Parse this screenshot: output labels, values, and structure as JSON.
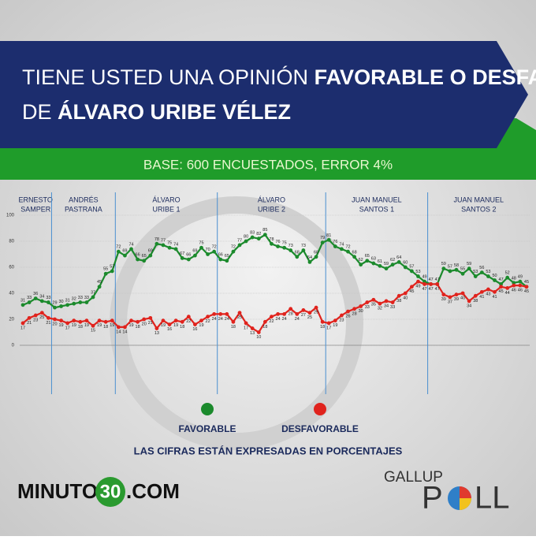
{
  "header": {
    "title_lines": [
      [
        {
          "text": "TIENE USTED UNA OPINIÓN ",
          "bold": false
        },
        {
          "text": "FAVORABLE O DESFAVORABLE",
          "bold": true
        }
      ],
      [
        {
          "text": "DE ",
          "bold": false
        },
        {
          "text": "ÁLVARO URIBE VÉLEZ",
          "bold": true
        }
      ]
    ],
    "subtitle": "BASE: 600 ENCUESTADOS, ERROR 4%"
  },
  "chart_data": {
    "type": "line",
    "categories": [
      null,
      null,
      null,
      null,
      null,
      null,
      null,
      null,
      null,
      null,
      null,
      null,
      null,
      null,
      null,
      null,
      null,
      null,
      null,
      null,
      null,
      null,
      null,
      null,
      null,
      null,
      null,
      null,
      null,
      null,
      null,
      null,
      null,
      null,
      null,
      null,
      null,
      null,
      null,
      null,
      null,
      null,
      null,
      null,
      null,
      null,
      null,
      null,
      null,
      null,
      null,
      null,
      null,
      null,
      null,
      null,
      null,
      null,
      null,
      null,
      null,
      null,
      null,
      null,
      null,
      null,
      null,
      null,
      null,
      null,
      null,
      null,
      null,
      null,
      null,
      null,
      null,
      null,
      null,
      null
    ],
    "series": [
      {
        "name": "FAVORABLE",
        "color": "#1b8a2c",
        "values": [
          31,
          33,
          36,
          34,
          33,
          29,
          30,
          31,
          32,
          33,
          33,
          37,
          45,
          55,
          57,
          72,
          69,
          74,
          66,
          65,
          69,
          78,
          77,
          75,
          74,
          67,
          66,
          69,
          75,
          70,
          72,
          66,
          65,
          72,
          77,
          80,
          83,
          82,
          85,
          78,
          76,
          75,
          73,
          68,
          73,
          64,
          68,
          79,
          81,
          76,
          74,
          72,
          68,
          62,
          65,
          63,
          61,
          59,
          62,
          64,
          60,
          57,
          53,
          49,
          47,
          47,
          59,
          57,
          58,
          55,
          59,
          53,
          56,
          53,
          50,
          47,
          52,
          48,
          49,
          45
        ]
      },
      {
        "name": "DESFAVORABLE",
        "color": "#e0231d",
        "values": [
          17,
          21,
          23,
          25,
          21,
          20,
          19,
          17,
          19,
          18,
          19,
          15,
          19,
          18,
          19,
          14,
          14,
          19,
          18,
          20,
          21,
          13,
          19,
          16,
          19,
          18,
          22,
          16,
          19,
          22,
          24,
          24,
          24,
          18,
          25,
          17,
          13,
          10,
          18,
          22,
          24,
          24,
          28,
          24,
          27,
          25,
          29,
          18,
          17,
          19,
          23,
          26,
          28,
          30,
          33,
          35,
          32,
          34,
          33,
          38,
          40,
          45,
          49,
          47,
          47,
          47,
          39,
          37,
          39,
          40,
          34,
          38,
          41,
          43,
          41,
          45,
          44,
          46,
          46,
          45
        ]
      }
    ],
    "periods": [
      {
        "lines": [
          "ERNESTO",
          "SAMPER"
        ],
        "start": 0
      },
      {
        "lines": [
          "ANDRÉS",
          "PASTRANA"
        ],
        "start": 5
      },
      {
        "lines": [
          "ÁLVARO",
          "URIBE 1"
        ],
        "start": 15
      },
      {
        "lines": [
          "ÁLVARO",
          "URIBE 2"
        ],
        "start": 31
      },
      {
        "lines": [
          "JUAN MANUEL",
          "SANTOS 1"
        ],
        "start": 48
      },
      {
        "lines": [
          "JUAN MANUEL",
          "SANTOS 2"
        ],
        "start": 64
      }
    ],
    "ylim": [
      0,
      100
    ],
    "yticks": [
      0,
      20,
      40,
      60,
      80,
      100
    ],
    "grid": true,
    "note": "LAS CIFRAS ESTÁN EXPRESADAS EN PORCENTAJES"
  },
  "footer": {
    "minuto": [
      "MINUTO",
      "30",
      ".COM"
    ],
    "gallup": [
      "GALLUP",
      "P",
      "LL"
    ]
  }
}
